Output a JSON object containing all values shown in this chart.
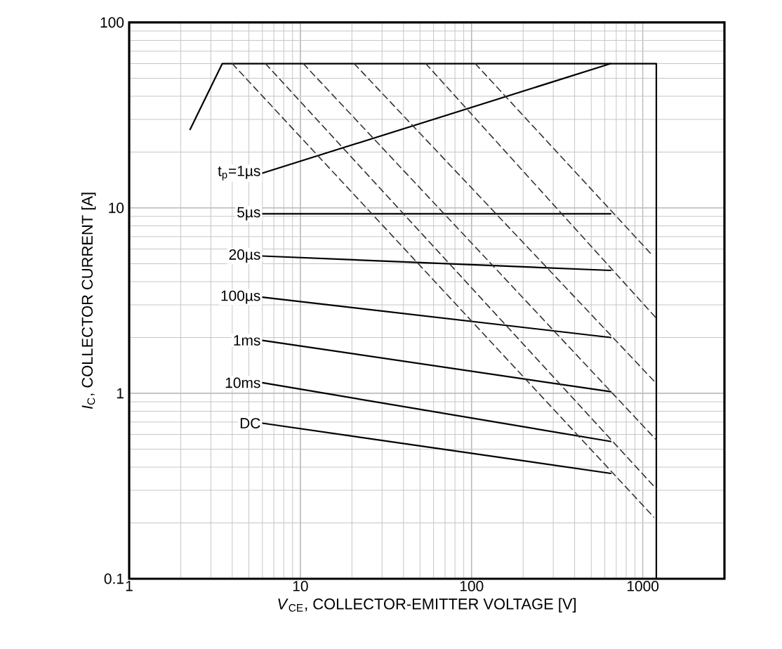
{
  "chart_data": {
    "type": "line",
    "xlabel": "*V*$_{CE}$, COLLECTOR-EMITTER VOLTAGE [V]",
    "ylabel": "*I*$_{C}$, COLLECTOR CURRENT [A]",
    "log": "xy",
    "grid": true,
    "marker": "none",
    "xlim": [
      1,
      3000
    ],
    "ylim": [
      0.1,
      100
    ],
    "xticks": [
      1,
      10,
      100,
      1000
    ],
    "yticks": [
      0.1,
      1,
      10,
      100
    ],
    "series": [
      {
        "color": "#000000",
        "line_style": "solid",
        "x": [
          2.27,
          3.5,
          1200,
          1200
        ],
        "values": [
          26.5,
          60,
          60,
          0.1
        ]
      },
      {
        "name": "t$_{p}$=1µs",
        "color": "#000000",
        "line_style": "solid",
        "x": [
          6,
          650
        ],
        "values": [
          15.4,
          60
        ]
      },
      {
        "name": "5µs",
        "color": "#000000",
        "line_style": "solid",
        "x": [
          6,
          650
        ],
        "values": [
          9.3,
          9.3
        ]
      },
      {
        "name": "20µs",
        "color": "#000000",
        "line_style": "solid",
        "x": [
          6,
          650
        ],
        "values": [
          5.5,
          4.6
        ]
      },
      {
        "name": "100µs",
        "color": "#000000",
        "line_style": "solid",
        "x": [
          6,
          650
        ],
        "values": [
          3.3,
          2.0
        ]
      },
      {
        "name": "1ms",
        "color": "#000000",
        "line_style": "solid",
        "x": [
          6,
          650
        ],
        "values": [
          1.93,
          1.02
        ]
      },
      {
        "name": "10ms",
        "color": "#000000",
        "line_style": "solid",
        "x": [
          6,
          650
        ],
        "values": [
          1.14,
          0.55
        ]
      },
      {
        "name": "DC",
        "color": "#000000",
        "line_style": "solid",
        "x": [
          6,
          650
        ],
        "values": [
          0.69,
          0.37
        ]
      },
      {
        "color": "#333333",
        "line_style": "dashed",
        "x": [
          4.0,
          1160
        ],
        "values": [
          60,
          0.215
        ]
      },
      {
        "color": "#333333",
        "line_style": "dashed",
        "x": [
          6.25,
          1200
        ],
        "values": [
          60,
          0.305
        ]
      },
      {
        "color": "#333333",
        "line_style": "dashed",
        "x": [
          10.4,
          1200
        ],
        "values": [
          60,
          0.56
        ]
      },
      {
        "color": "#333333",
        "line_style": "dashed",
        "x": [
          20.6,
          1200
        ],
        "values": [
          60,
          1.13
        ]
      },
      {
        "color": "#333333",
        "line_style": "dashed",
        "x": [
          54,
          1200
        ],
        "values": [
          60,
          2.54
        ]
      },
      {
        "color": "#333333",
        "line_style": "dashed",
        "x": [
          105,
          1135
        ],
        "values": [
          60,
          5.56
        ]
      }
    ]
  }
}
